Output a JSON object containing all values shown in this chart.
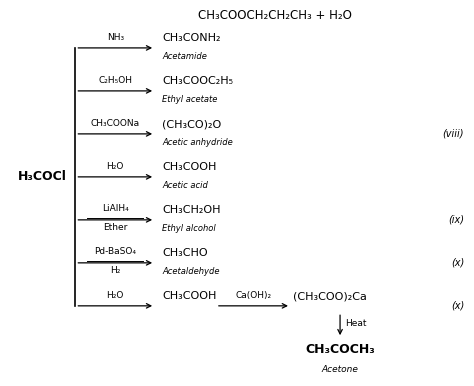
{
  "bg_color": "#ffffff",
  "title_formula": "CH₃COOCH₂CH₂CH₃ + H₂O",
  "reactant": "H₃COCl",
  "reactions": [
    {
      "reagent": "NH₃",
      "product": "CH₃CONH₂",
      "product_name": "Acetamide",
      "two_line": false
    },
    {
      "reagent": "C₂H₅OH",
      "product": "CH₃COOC₂H₅",
      "product_name": "Ethyl acetate",
      "two_line": false
    },
    {
      "reagent": "CH₃COONa",
      "product": "(CH₃CO)₂O",
      "product_name": "Acetic anhydride",
      "two_line": false
    },
    {
      "reagent": "H₂O",
      "product": "CH₃COOH",
      "product_name": "Acetic acid",
      "two_line": false
    },
    {
      "reagent_top": "LiAlH₄",
      "reagent_bot": "Ether",
      "product": "CH₃CH₂OH",
      "product_name": "Ethyl alcohol",
      "two_line": true
    },
    {
      "reagent_top": "Pd-BaSO₄",
      "reagent_bot": "H₂",
      "product": "CH₃CHO",
      "product_name": "Acetaldehyde",
      "two_line": true
    },
    {
      "reagent": "H₂O",
      "product": "CH₃COOH",
      "product_name": "",
      "two_line": false
    }
  ],
  "extra_reagent": "Ca(OH)₂",
  "extra_product": "(CH₃COO)₂Ca",
  "heat_product": "CH₃COCH₃",
  "heat_product_name": "Acetone",
  "side_labels": [
    {
      "label": "(viii)",
      "row": 2
    },
    {
      "label": "(ix)",
      "row": 4
    },
    {
      "label": "(x)",
      "row": 5
    },
    {
      "label": "(x)",
      "row": 6
    }
  ]
}
